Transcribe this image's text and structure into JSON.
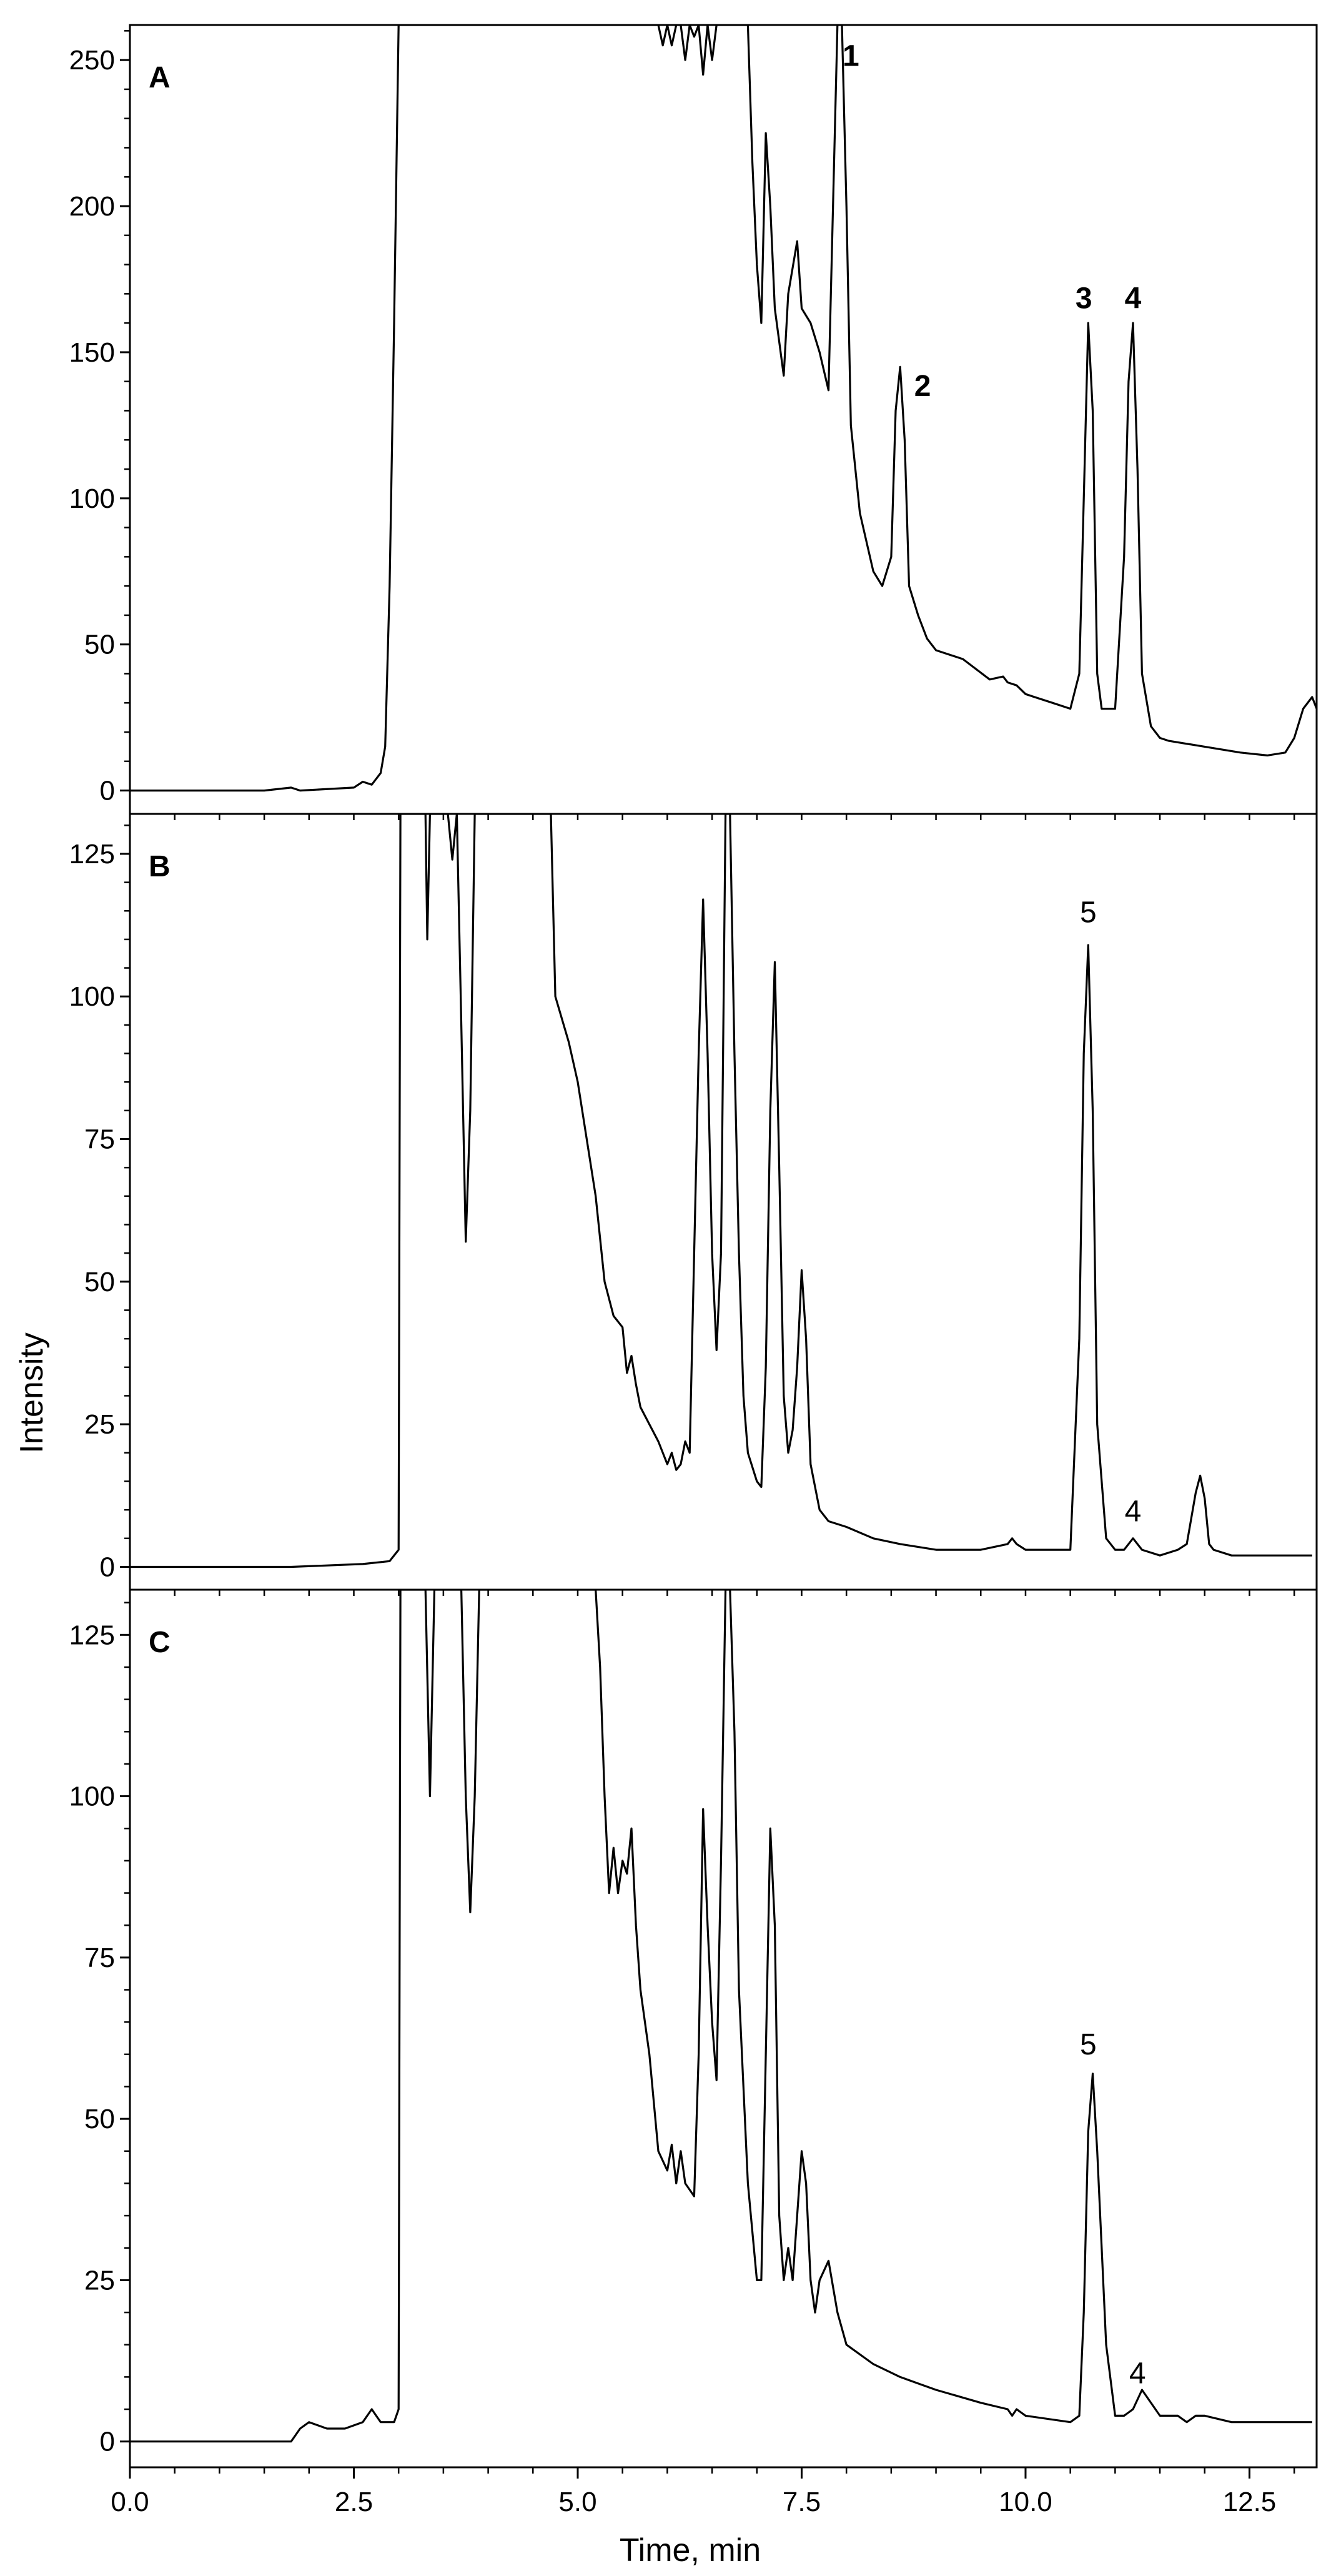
{
  "chart_data": {
    "type": "line",
    "xlabel": "Time, min",
    "ylabel": "Intensity",
    "xlim": [
      0,
      13.25
    ],
    "xticks": [
      "0.0",
      "2.5",
      "5.0",
      "7.5",
      "10.0",
      "12.5"
    ],
    "panels": [
      {
        "label": "A",
        "ylim": [
          -8,
          262
        ],
        "yticks": [
          "0",
          "50",
          "100",
          "150",
          "200",
          "250"
        ],
        "peak_labels": [
          {
            "text": "1",
            "x": 8.05,
            "y": 248
          },
          {
            "text": "2",
            "x": 8.85,
            "y": 135
          },
          {
            "text": "3",
            "x": 10.65,
            "y": 165
          },
          {
            "text": "4",
            "x": 11.2,
            "y": 165
          }
        ],
        "series": [
          {
            "x": [
              0,
              1.5,
              1.8,
              1.9,
              2.5,
              2.6,
              2.7,
              2.8,
              2.85,
              2.9,
              2.95,
              3.0,
              3.05,
              3.1,
              3.15,
              3.2,
              5.9,
              5.95,
              6.0,
              6.05,
              6.1,
              6.15,
              6.2,
              6.25,
              6.3,
              6.35,
              6.4,
              6.45,
              6.5,
              6.55,
              6.6,
              6.7,
              6.8,
              6.9,
              6.95,
              7.0,
              7.05,
              7.1,
              7.15,
              7.2,
              7.3,
              7.35,
              7.45,
              7.5,
              7.6,
              7.7,
              7.8,
              7.85,
              7.9,
              7.95,
              8.0,
              8.05,
              8.15,
              8.3,
              8.4,
              8.5,
              8.55,
              8.6,
              8.65,
              8.7,
              8.8,
              8.9,
              9.0,
              9.3,
              9.6,
              9.75,
              9.8,
              9.9,
              10.0,
              10.3,
              10.5,
              10.6,
              10.65,
              10.7,
              10.75,
              10.8,
              10.85,
              11.0,
              11.1,
              11.15,
              11.2,
              11.25,
              11.3,
              11.4,
              11.5,
              11.6,
              12.0,
              12.4,
              12.7,
              12.9,
              13.0,
              13.1,
              13.2,
              13.25
            ],
            "y": [
              0,
              0,
              1,
              0,
              1,
              3,
              2,
              6,
              15,
              70,
              160,
              262,
              262,
              262,
              262,
              262,
              262,
              255,
              262,
              255,
              262,
              262,
              250,
              262,
              258,
              262,
              245,
              262,
              250,
              262,
              262,
              262,
              262,
              262,
              215,
              180,
              160,
              225,
              200,
              165,
              142,
              170,
              188,
              165,
              160,
              150,
              137,
              200,
              262,
              262,
              200,
              125,
              95,
              75,
              70,
              80,
              130,
              145,
              120,
              70,
              60,
              52,
              48,
              45,
              38,
              39,
              37,
              36,
              33,
              30,
              28,
              40,
              100,
              160,
              130,
              40,
              28,
              28,
              80,
              140,
              160,
              110,
              40,
              22,
              18,
              17,
              15,
              13,
              12,
              13,
              18,
              28,
              32,
              28
            ]
          }
        ]
      },
      {
        "label": "B",
        "ylim": [
          -4,
          132
        ],
        "yticks": [
          "0",
          "25",
          "50",
          "75",
          "100",
          "125"
        ],
        "peak_labels": [
          {
            "text": "5",
            "x": 10.7,
            "y": 113
          },
          {
            "text": "4",
            "x": 11.2,
            "y": 8
          }
        ],
        "series": [
          {
            "x": [
              0,
              1.8,
              2.6,
              2.9,
              3.0,
              3.02,
              3.05,
              3.3,
              3.32,
              3.35,
              3.55,
              3.6,
              3.65,
              3.7,
              3.75,
              3.8,
              3.85,
              3.9,
              3.95,
              4.7,
              4.75,
              4.9,
              5.0,
              5.2,
              5.3,
              5.4,
              5.5,
              5.55,
              5.6,
              5.65,
              5.7,
              5.8,
              5.9,
              6.0,
              6.05,
              6.1,
              6.15,
              6.2,
              6.25,
              6.3,
              6.35,
              6.4,
              6.45,
              6.5,
              6.55,
              6.6,
              6.65,
              6.7,
              6.75,
              6.8,
              6.85,
              6.9,
              7.0,
              7.05,
              7.1,
              7.15,
              7.2,
              7.25,
              7.3,
              7.35,
              7.4,
              7.45,
              7.5,
              7.55,
              7.6,
              7.7,
              7.8,
              8.0,
              8.3,
              8.6,
              9.0,
              9.5,
              9.8,
              9.85,
              9.9,
              10.0,
              10.5,
              10.6,
              10.65,
              10.7,
              10.75,
              10.8,
              10.9,
              11.0,
              11.1,
              11.2,
              11.3,
              11.5,
              11.7,
              11.8,
              11.9,
              11.95,
              12.0,
              12.05,
              12.1,
              12.3,
              12.6,
              13.0,
              13.2
            ],
            "y": [
              0,
              0,
              0.5,
              1,
              3,
              132,
              132,
              132,
              110,
              132,
              132,
              124,
              132,
              95,
              57,
              80,
              132,
              132,
              132,
              132,
              100,
              92,
              85,
              65,
              50,
              44,
              42,
              34,
              37,
              32,
              28,
              25,
              22,
              18,
              20,
              17,
              18,
              22,
              20,
              55,
              90,
              117,
              90,
              55,
              38,
              55,
              132,
              132,
              90,
              55,
              30,
              20,
              15,
              14,
              35,
              80,
              106,
              70,
              30,
              20,
              24,
              35,
              52,
              40,
              18,
              10,
              8,
              7,
              5,
              4,
              3,
              3,
              4,
              5,
              4,
              3,
              3,
              40,
              90,
              109,
              80,
              25,
              5,
              3,
              3,
              5,
              3,
              2,
              3,
              4,
              13,
              16,
              12,
              4,
              3,
              2,
              2,
              2,
              2
            ]
          }
        ]
      },
      {
        "label": "C",
        "ylim": [
          -4,
          132
        ],
        "yticks": [
          "0",
          "25",
          "50",
          "75",
          "100",
          "125"
        ],
        "peak_labels": [
          {
            "text": "5",
            "x": 10.7,
            "y": 60
          },
          {
            "text": "4",
            "x": 11.25,
            "y": 9
          }
        ],
        "series": [
          {
            "x": [
              0,
              1.8,
              1.9,
              2.0,
              2.2,
              2.4,
              2.6,
              2.7,
              2.75,
              2.8,
              2.95,
              3.0,
              3.02,
              3.05,
              3.1,
              3.3,
              3.35,
              3.4,
              3.45,
              3.5,
              3.7,
              3.75,
              3.8,
              3.85,
              3.9,
              5.2,
              5.25,
              5.3,
              5.35,
              5.4,
              5.45,
              5.5,
              5.55,
              5.6,
              5.65,
              5.7,
              5.8,
              5.9,
              6.0,
              6.05,
              6.1,
              6.15,
              6.2,
              6.3,
              6.35,
              6.4,
              6.45,
              6.5,
              6.55,
              6.6,
              6.65,
              6.7,
              6.75,
              6.8,
              6.9,
              7.0,
              7.05,
              7.1,
              7.15,
              7.2,
              7.25,
              7.3,
              7.35,
              7.4,
              7.5,
              7.55,
              7.6,
              7.65,
              7.7,
              7.8,
              7.9,
              8.0,
              8.3,
              8.6,
              8.8,
              9.0,
              9.5,
              9.8,
              9.85,
              9.9,
              10.0,
              10.5,
              10.6,
              10.65,
              10.7,
              10.75,
              10.8,
              10.9,
              11.0,
              11.1,
              11.2,
              11.3,
              11.5,
              11.7,
              11.8,
              11.9,
              12.0,
              12.3,
              12.6,
              13.0,
              13.2
            ],
            "y": [
              0,
              0,
              2,
              3,
              2,
              2,
              3,
              5,
              4,
              3,
              3,
              5,
              132,
              132,
              132,
              132,
              100,
              132,
              132,
              132,
              132,
              100,
              82,
              100,
              132,
              132,
              120,
              100,
              85,
              92,
              85,
              90,
              88,
              95,
              80,
              70,
              60,
              45,
              42,
              46,
              40,
              45,
              40,
              38,
              60,
              98,
              80,
              65,
              56,
              90,
              132,
              132,
              110,
              70,
              40,
              25,
              25,
              60,
              95,
              80,
              35,
              25,
              30,
              25,
              45,
              40,
              25,
              20,
              25,
              28,
              20,
              15,
              12,
              10,
              9,
              8,
              6,
              5,
              4,
              5,
              4,
              3,
              4,
              20,
              48,
              57,
              45,
              15,
              4,
              4,
              5,
              8,
              4,
              4,
              3,
              4,
              4,
              3,
              3,
              3,
              3
            ]
          }
        ]
      }
    ]
  }
}
